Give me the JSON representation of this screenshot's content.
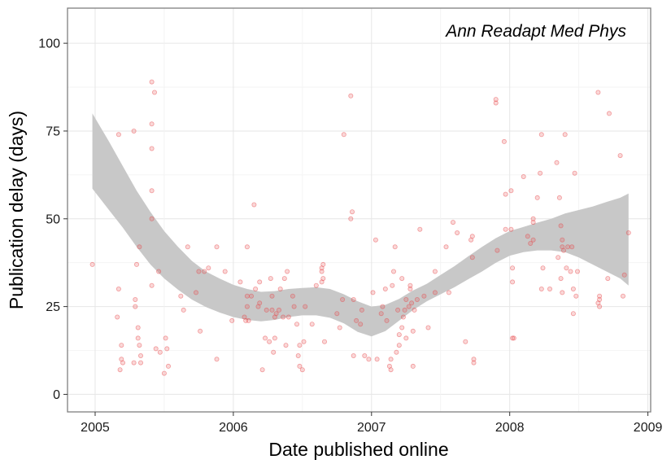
{
  "chart_data": {
    "type": "scatter",
    "title": "Ann Readapt Med Phys",
    "xlabel": "Date published online",
    "ylabel": "Publication delay (days)",
    "xlim": [
      2004.8,
      2009.02
    ],
    "ylim": [
      -5,
      110
    ],
    "x_ticks": [
      2005,
      2006,
      2007,
      2008,
      2009
    ],
    "x_tick_labels": [
      "2005",
      "2006",
      "2007",
      "2008",
      "2009"
    ],
    "y_ticks": [
      0,
      25,
      50,
      75,
      100
    ],
    "y_tick_labels": [
      "0",
      "25",
      "50",
      "75",
      "100"
    ],
    "grid": true,
    "point_color": "#e8474b",
    "band_color": "#c8c8c8",
    "points": [
      [
        2004.98,
        37
      ],
      [
        2005.17,
        30
      ],
      [
        2005.17,
        74
      ],
      [
        2005.16,
        22
      ],
      [
        2005.19,
        10
      ],
      [
        2005.18,
        7
      ],
      [
        2005.2,
        9
      ],
      [
        2005.19,
        14
      ],
      [
        2005.28,
        75
      ],
      [
        2005.28,
        9
      ],
      [
        2005.29,
        27
      ],
      [
        2005.29,
        25
      ],
      [
        2005.3,
        37
      ],
      [
        2005.31,
        19
      ],
      [
        2005.31,
        16
      ],
      [
        2005.32,
        42
      ],
      [
        2005.33,
        9
      ],
      [
        2005.32,
        14
      ],
      [
        2005.33,
        11
      ],
      [
        2005.41,
        89
      ],
      [
        2005.41,
        77
      ],
      [
        2005.41,
        70
      ],
      [
        2005.41,
        58
      ],
      [
        2005.41,
        50
      ],
      [
        2005.43,
        86
      ],
      [
        2005.41,
        31
      ],
      [
        2005.44,
        13
      ],
      [
        2005.46,
        35
      ],
      [
        2005.47,
        12
      ],
      [
        2005.5,
        6
      ],
      [
        2005.51,
        16
      ],
      [
        2005.52,
        13
      ],
      [
        2005.53,
        8
      ],
      [
        2005.62,
        28
      ],
      [
        2005.64,
        24
      ],
      [
        2005.67,
        42
      ],
      [
        2005.73,
        29
      ],
      [
        2005.75,
        35
      ],
      [
        2005.76,
        18
      ],
      [
        2005.79,
        35
      ],
      [
        2005.82,
        36
      ],
      [
        2005.88,
        10
      ],
      [
        2005.88,
        42
      ],
      [
        2005.94,
        35
      ],
      [
        2005.99,
        21
      ],
      [
        2006.05,
        32
      ],
      [
        2006.08,
        22
      ],
      [
        2006.09,
        21
      ],
      [
        2006.1,
        42
      ],
      [
        2006.1,
        28
      ],
      [
        2006.1,
        25
      ],
      [
        2006.11,
        21
      ],
      [
        2006.13,
        28
      ],
      [
        2006.15,
        54
      ],
      [
        2006.16,
        30
      ],
      [
        2006.18,
        25
      ],
      [
        2006.19,
        32
      ],
      [
        2006.19,
        26
      ],
      [
        2006.21,
        7
      ],
      [
        2006.23,
        16
      ],
      [
        2006.24,
        24
      ],
      [
        2006.26,
        15
      ],
      [
        2006.27,
        33
      ],
      [
        2006.28,
        28
      ],
      [
        2006.28,
        24
      ],
      [
        2006.29,
        12
      ],
      [
        2006.3,
        16
      ],
      [
        2006.3,
        22
      ],
      [
        2006.31,
        23
      ],
      [
        2006.33,
        24
      ],
      [
        2006.34,
        30
      ],
      [
        2006.36,
        22
      ],
      [
        2006.37,
        33
      ],
      [
        2006.38,
        14
      ],
      [
        2006.39,
        35
      ],
      [
        2006.4,
        22
      ],
      [
        2006.43,
        28
      ],
      [
        2006.44,
        25
      ],
      [
        2006.46,
        20
      ],
      [
        2006.47,
        11
      ],
      [
        2006.48,
        14
      ],
      [
        2006.48,
        8
      ],
      [
        2006.5,
        7
      ],
      [
        2006.51,
        15
      ],
      [
        2006.52,
        25
      ],
      [
        2006.57,
        20
      ],
      [
        2006.6,
        31
      ],
      [
        2006.64,
        36
      ],
      [
        2006.64,
        35
      ],
      [
        2006.65,
        37
      ],
      [
        2006.64,
        32
      ],
      [
        2006.65,
        33
      ],
      [
        2006.66,
        15
      ],
      [
        2006.75,
        23
      ],
      [
        2006.77,
        19
      ],
      [
        2006.79,
        27
      ],
      [
        2006.8,
        74
      ],
      [
        2006.85,
        85
      ],
      [
        2006.85,
        50
      ],
      [
        2006.86,
        52
      ],
      [
        2006.87,
        27
      ],
      [
        2006.87,
        11
      ],
      [
        2006.89,
        21
      ],
      [
        2006.92,
        20
      ],
      [
        2006.93,
        24
      ],
      [
        2006.95,
        11
      ],
      [
        2006.98,
        10
      ],
      [
        2007.01,
        29
      ],
      [
        2007.03,
        44
      ],
      [
        2007.04,
        10
      ],
      [
        2007.07,
        23
      ],
      [
        2007.08,
        25
      ],
      [
        2007.1,
        30
      ],
      [
        2007.11,
        21
      ],
      [
        2007.13,
        8
      ],
      [
        2007.14,
        7
      ],
      [
        2007.14,
        10
      ],
      [
        2007.15,
        31
      ],
      [
        2007.16,
        35
      ],
      [
        2007.17,
        42
      ],
      [
        2007.18,
        12
      ],
      [
        2007.19,
        24
      ],
      [
        2007.2,
        17
      ],
      [
        2007.2,
        14
      ],
      [
        2007.22,
        33
      ],
      [
        2007.22,
        19
      ],
      [
        2007.23,
        22
      ],
      [
        2007.24,
        24
      ],
      [
        2007.25,
        27
      ],
      [
        2007.25,
        16
      ],
      [
        2007.27,
        25
      ],
      [
        2007.28,
        31
      ],
      [
        2007.28,
        30
      ],
      [
        2007.29,
        26
      ],
      [
        2007.3,
        8
      ],
      [
        2007.3,
        18
      ],
      [
        2007.31,
        24
      ],
      [
        2007.33,
        27
      ],
      [
        2007.35,
        47
      ],
      [
        2007.38,
        28
      ],
      [
        2007.41,
        19
      ],
      [
        2007.46,
        35
      ],
      [
        2007.46,
        29
      ],
      [
        2007.54,
        42
      ],
      [
        2007.56,
        29
      ],
      [
        2007.59,
        49
      ],
      [
        2007.62,
        46
      ],
      [
        2007.68,
        15
      ],
      [
        2007.72,
        44
      ],
      [
        2007.73,
        39
      ],
      [
        2007.73,
        45
      ],
      [
        2007.74,
        10
      ],
      [
        2007.74,
        9
      ],
      [
        2007.9,
        84
      ],
      [
        2007.9,
        83
      ],
      [
        2007.91,
        41
      ],
      [
        2007.96,
        72
      ],
      [
        2007.97,
        47
      ],
      [
        2007.97,
        57
      ],
      [
        2008.01,
        58
      ],
      [
        2008.01,
        47
      ],
      [
        2008.02,
        36
      ],
      [
        2008.02,
        32
      ],
      [
        2008.02,
        16
      ],
      [
        2008.03,
        16
      ],
      [
        2008.1,
        62
      ],
      [
        2008.13,
        45
      ],
      [
        2008.15,
        43
      ],
      [
        2008.17,
        50
      ],
      [
        2008.17,
        49
      ],
      [
        2008.17,
        44
      ],
      [
        2008.2,
        56
      ],
      [
        2008.22,
        63
      ],
      [
        2008.23,
        74
      ],
      [
        2008.24,
        36
      ],
      [
        2008.23,
        30
      ],
      [
        2008.29,
        30
      ],
      [
        2008.34,
        66
      ],
      [
        2008.35,
        39
      ],
      [
        2008.36,
        56
      ],
      [
        2008.37,
        48
      ],
      [
        2008.37,
        33
      ],
      [
        2008.38,
        44
      ],
      [
        2008.38,
        42
      ],
      [
        2008.38,
        29
      ],
      [
        2008.39,
        41
      ],
      [
        2008.4,
        74
      ],
      [
        2008.41,
        36
      ],
      [
        2008.42,
        42
      ],
      [
        2008.44,
        35
      ],
      [
        2008.45,
        42
      ],
      [
        2008.46,
        30
      ],
      [
        2008.46,
        23
      ],
      [
        2008.47,
        63
      ],
      [
        2008.48,
        28
      ],
      [
        2008.49,
        35
      ],
      [
        2008.64,
        86
      ],
      [
        2008.64,
        26
      ],
      [
        2008.65,
        27
      ],
      [
        2008.65,
        28
      ],
      [
        2008.65,
        25
      ],
      [
        2008.71,
        33
      ],
      [
        2008.72,
        80
      ],
      [
        2008.8,
        68
      ],
      [
        2008.82,
        28
      ],
      [
        2008.83,
        34
      ],
      [
        2008.86,
        46
      ]
    ],
    "smooth": {
      "x": [
        2004.98,
        2005.1,
        2005.2,
        2005.3,
        2005.4,
        2005.5,
        2005.6,
        2005.7,
        2005.8,
        2005.9,
        2006.0,
        2006.1,
        2006.2,
        2006.3,
        2006.4,
        2006.5,
        2006.6,
        2006.7,
        2006.8,
        2006.9,
        2007.0,
        2007.1,
        2007.2,
        2007.3,
        2007.4,
        2007.5,
        2007.6,
        2007.7,
        2007.8,
        2007.9,
        2008.0,
        2008.1,
        2008.2,
        2008.3,
        2008.4,
        2008.5,
        2008.6,
        2008.7,
        2008.8,
        2008.86
      ],
      "lower": [
        58.6,
        52.5,
        47.5,
        42.0,
        37.0,
        33.0,
        29.8,
        27.0,
        24.9,
        23.3,
        22.0,
        21.2,
        20.8,
        21.2,
        22.0,
        22.5,
        22.5,
        21.8,
        20.2,
        17.8,
        16.5,
        18.0,
        21.0,
        24.0,
        26.5,
        28.5,
        30.5,
        32.8,
        35.0,
        37.5,
        39.5,
        40.5,
        41.0,
        41.0,
        40.5,
        39.0,
        37.0,
        35.0,
        33.0,
        31.0
      ],
      "upper": [
        80.0,
        72.0,
        65.0,
        58.0,
        52.0,
        46.5,
        42.0,
        38.0,
        35.0,
        33.0,
        31.2,
        30.0,
        29.2,
        29.4,
        30.0,
        30.3,
        30.5,
        30.0,
        28.5,
        26.5,
        25.0,
        25.5,
        27.2,
        29.6,
        31.5,
        34.0,
        36.5,
        39.3,
        42.0,
        44.5,
        46.5,
        47.7,
        48.9,
        50.0,
        51.5,
        52.5,
        53.5,
        54.8,
        56.0,
        57.2
      ]
    }
  }
}
